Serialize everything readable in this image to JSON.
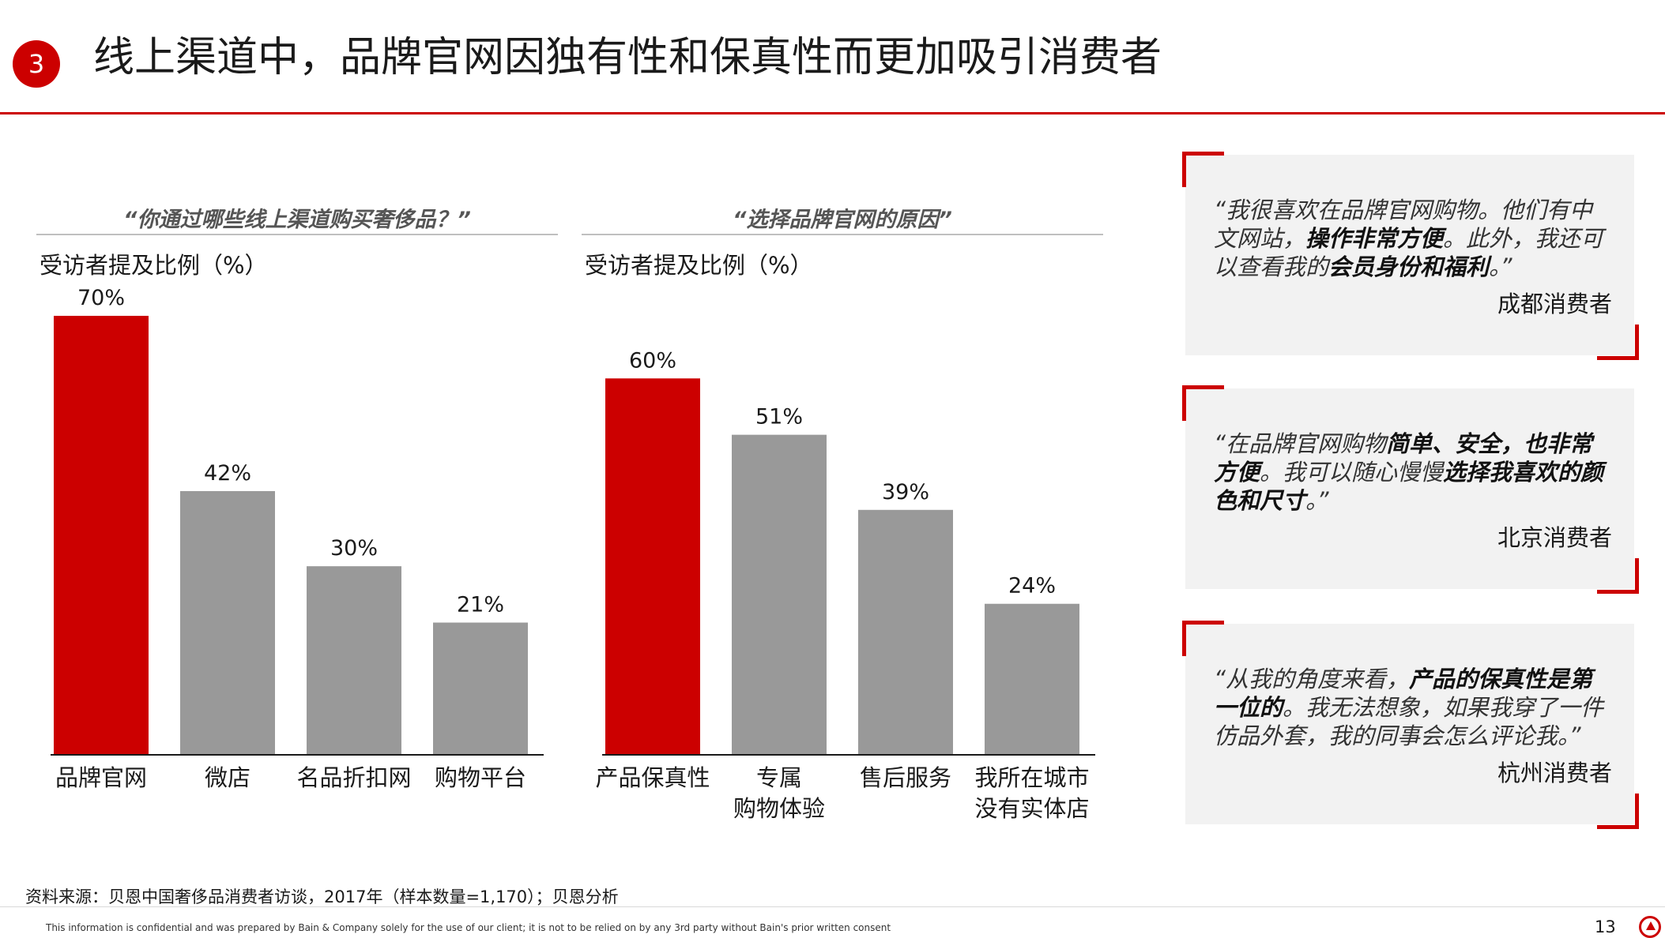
{
  "badge": "3",
  "title": "线上渠道中，品牌官网因独有性和保真性而更加吸引消费者",
  "chart_data": [
    {
      "type": "bar",
      "title": "“你通过哪些线上渠道购买奢侈品？”",
      "ylabel": "受访者提及比例（%）",
      "categories": [
        [
          "品牌官网"
        ],
        [
          "微店"
        ],
        [
          "名品折扣网"
        ],
        [
          "购物平台"
        ]
      ],
      "values": [
        70,
        42,
        30,
        21
      ],
      "value_labels": [
        "70%",
        "42%",
        "30%",
        "21%"
      ],
      "highlight_index": 0,
      "ylim": [
        0,
        70
      ],
      "grid": false,
      "colors": {
        "highlight": "#cc0000",
        "default": "#999999"
      }
    },
    {
      "type": "bar",
      "title": "“选择品牌官网的原因”",
      "ylabel": "受访者提及比例（%）",
      "categories": [
        [
          "产品保真性"
        ],
        [
          "专属",
          "购物体验"
        ],
        [
          "售后服务"
        ],
        [
          "我所在城市",
          "没有实体店"
        ]
      ],
      "values": [
        60,
        51,
        39,
        24
      ],
      "value_labels": [
        "60%",
        "51%",
        "39%",
        "24%"
      ],
      "highlight_index": 0,
      "ylim": [
        0,
        70
      ],
      "grid": false,
      "colors": {
        "highlight": "#cc0000",
        "default": "#999999"
      }
    }
  ],
  "quotes": [
    {
      "segments": [
        {
          "text": "“我很喜欢在品牌官网购物。他们有中文网站，",
          "bold": false
        },
        {
          "text": "操作非常方便",
          "bold": true
        },
        {
          "text": "。此外，我还可以查看我的",
          "bold": false
        },
        {
          "text": "会员身份和福利",
          "bold": true
        },
        {
          "text": "。”",
          "bold": false
        }
      ],
      "author": "成都消费者"
    },
    {
      "segments": [
        {
          "text": "“在品牌官网购物",
          "bold": false
        },
        {
          "text": "简单、安全，也非常方便",
          "bold": true
        },
        {
          "text": "。我可以随心慢慢",
          "bold": false
        },
        {
          "text": "选择我喜欢的颜色和尺寸",
          "bold": true
        },
        {
          "text": "。”",
          "bold": false
        }
      ],
      "author": "北京消费者"
    },
    {
      "segments": [
        {
          "text": "“从我的角度来看，",
          "bold": false
        },
        {
          "text": "产品的保真性是第一位的",
          "bold": true
        },
        {
          "text": "。我无法想象，如果我穿了一件仿品外套，我的同事会怎么评论我。”",
          "bold": false
        }
      ],
      "author": "杭州消费者"
    }
  ],
  "source": "资料来源：贝恩中国奢侈品消费者访谈，2017年（样本数量=1,170）；贝恩分析",
  "disclaimer": "This information is confidential and was prepared by Bain & Company solely for the use of our client; it is not to be relied on by any 3rd party without Bain's prior written consent",
  "page_number": "13"
}
